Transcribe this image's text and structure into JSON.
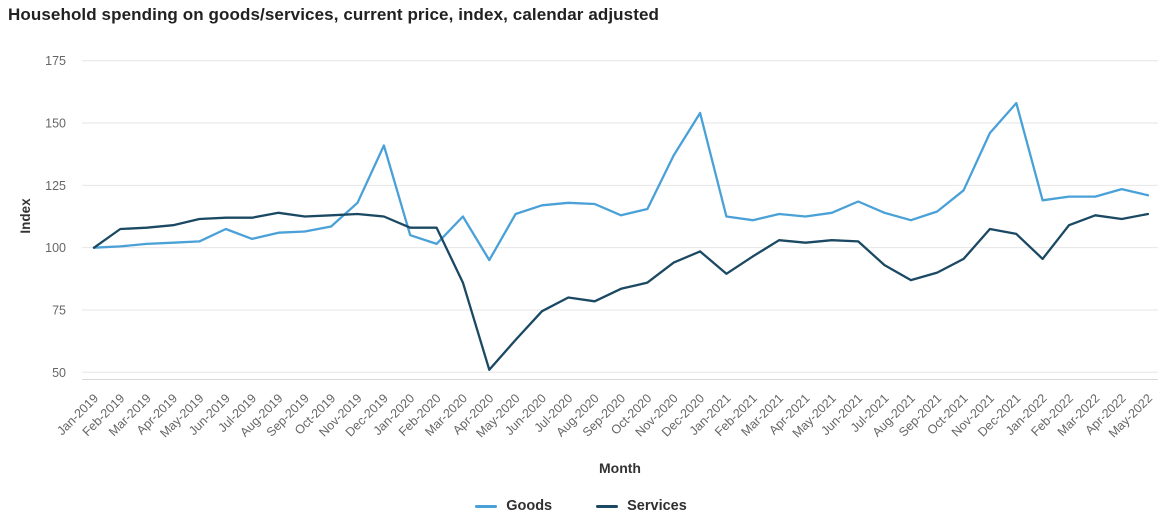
{
  "title": "Household spending on goods/services, current price, index, calendar adjusted",
  "x_axis_title": "Month",
  "y_axis_title": "Index",
  "colors": {
    "goods": "#4aa1d8",
    "services": "#1b4963",
    "gridline": "#e6e6e6",
    "axis_line": "#d9d9d9",
    "tick_text": "#666666",
    "axis_title_text": "#333333"
  },
  "legend": {
    "items": [
      {
        "label": "Goods",
        "color": "#4aa1d8"
      },
      {
        "label": "Services",
        "color": "#1b4963"
      }
    ]
  },
  "chart_data": {
    "type": "line",
    "title": "Household spending on goods/services, current price, index, calendar adjusted",
    "xlabel": "Month",
    "ylabel": "Index",
    "ylim": [
      50,
      175
    ],
    "yticks": [
      175,
      150,
      125,
      100,
      75,
      50
    ],
    "grid": true,
    "legend_position": "bottom-center",
    "categories": [
      "Jan-2019",
      "Feb-2019",
      "Mar-2019",
      "Apr-2019",
      "May-2019",
      "Jun-2019",
      "Jul-2019",
      "Aug-2019",
      "Sep-2019",
      "Oct-2019",
      "Nov-2019",
      "Dec-2019",
      "Jan-2020",
      "Feb-2020",
      "Mar-2020",
      "Apr-2020",
      "May-2020",
      "Jun-2020",
      "Jul-2020",
      "Aug-2020",
      "Sep-2020",
      "Oct-2020",
      "Nov-2020",
      "Dec-2020",
      "Jan-2021",
      "Feb-2021",
      "Mar-2021",
      "Apr-2021",
      "May-2021",
      "Jun-2021",
      "Jul-2021",
      "Aug-2021",
      "Sep-2021",
      "Oct-2021",
      "Nov-2021",
      "Dec-2021",
      "Jan-2022",
      "Feb-2022",
      "Mar-2022",
      "Apr-2022",
      "May-2022"
    ],
    "series": [
      {
        "name": "Goods",
        "color": "#4aa1d8",
        "values": [
          100,
          100.5,
          101.5,
          102,
          102.5,
          107.5,
          103.5,
          106,
          106.5,
          108.5,
          118,
          141,
          105,
          101.5,
          112.5,
          95,
          113.5,
          117,
          118,
          117.5,
          113,
          115.5,
          137,
          154,
          112.5,
          111,
          113.5,
          112.5,
          114,
          118.5,
          114,
          111,
          114.5,
          123,
          146,
          158,
          119,
          120.5,
          120.5,
          123.5,
          121
        ]
      },
      {
        "name": "Services",
        "color": "#1b4963",
        "values": [
          100,
          107.5,
          108,
          109,
          111.5,
          112,
          112,
          114,
          112.5,
          113,
          113.5,
          112.5,
          108,
          108,
          86,
          51,
          63,
          74.5,
          80,
          78.5,
          83.5,
          86,
          94,
          98.5,
          89.5,
          96.5,
          103,
          102,
          103,
          102.5,
          93,
          87,
          90,
          95.5,
          107.5,
          105.5,
          95.5,
          109,
          113,
          111.5,
          113.5
        ]
      }
    ]
  }
}
